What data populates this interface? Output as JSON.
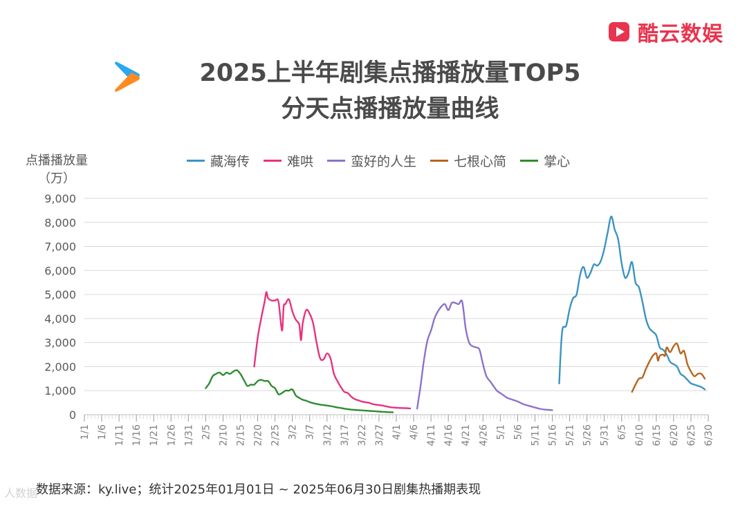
{
  "brand": {
    "name": "酷云数娱"
  },
  "title": {
    "line1": "2025上半年剧集点播播放量TOP5",
    "line2": "分天点播播放量曲线"
  },
  "source": "数据来源：ky.live；统计2025年01月01日 ~ 2025年06月30日剧集热播期表现",
  "watermark": "人数据",
  "colors": {
    "cangHaiZhuan": "#3a93c3",
    "nanHong": "#e8317e",
    "manHao": "#8c72c9",
    "qiGen": "#b5651d",
    "zhangXin": "#2e8b2e",
    "grid": "#d9d9d9",
    "brand": "#e8344e"
  },
  "chart_data": {
    "type": "line",
    "title": "2025上半年剧集点播播放量TOP5 分天点播播放量曲线",
    "ylabel": "点播播放量（万）",
    "xlabel": "",
    "ylim": [
      0,
      9000
    ],
    "yticks": [
      "0",
      "1,000",
      "2,000",
      "3,000",
      "4,000",
      "5,000",
      "6,000",
      "7,000",
      "8,000",
      "9,000"
    ],
    "xtick_labels": [
      "1/1",
      "1/6",
      "1/11",
      "1/16",
      "1/21",
      "1/26",
      "1/31",
      "2/5",
      "2/10",
      "2/15",
      "2/20",
      "2/25",
      "3/2",
      "3/7",
      "3/12",
      "3/17",
      "3/22",
      "3/27",
      "4/1",
      "4/6",
      "4/11",
      "4/16",
      "4/21",
      "4/26",
      "5/1",
      "5/6",
      "5/11",
      "5/16",
      "5/21",
      "5/26",
      "5/31",
      "6/5",
      "6/10",
      "6/15",
      "6/20",
      "6/25",
      "6/30"
    ],
    "x_unit": "day of year (1 = Jan 1)",
    "grid": true,
    "legend_position": "top",
    "series": [
      {
        "name": "藏海传",
        "color_key": "cangHaiZhuan",
        "points": [
          [
            138,
            1300
          ],
          [
            138.5,
            2800
          ],
          [
            139,
            3600
          ],
          [
            140,
            3700
          ],
          [
            141,
            4400
          ],
          [
            142,
            4850
          ],
          [
            143,
            5000
          ],
          [
            144,
            5800
          ],
          [
            145,
            6150
          ],
          [
            146,
            5700
          ],
          [
            147,
            5900
          ],
          [
            148,
            6250
          ],
          [
            149,
            6200
          ],
          [
            150,
            6400
          ],
          [
            151,
            6900
          ],
          [
            152,
            7600
          ],
          [
            153,
            8250
          ],
          [
            154,
            7700
          ],
          [
            155,
            7300
          ],
          [
            156,
            6300
          ],
          [
            157,
            5700
          ],
          [
            158,
            5900
          ],
          [
            159,
            6350
          ],
          [
            160,
            5500
          ],
          [
            161,
            5300
          ],
          [
            162,
            4700
          ],
          [
            163,
            4000
          ],
          [
            164,
            3600
          ],
          [
            165,
            3450
          ],
          [
            166,
            3300
          ],
          [
            167,
            2800
          ],
          [
            168,
            2700
          ],
          [
            169,
            2500
          ],
          [
            170,
            2200
          ],
          [
            171,
            2100
          ],
          [
            172,
            2000
          ],
          [
            173,
            1700
          ],
          [
            174,
            1600
          ],
          [
            175,
            1450
          ],
          [
            176,
            1300
          ],
          [
            177,
            1250
          ],
          [
            178,
            1200
          ],
          [
            179,
            1150
          ],
          [
            180,
            1050
          ]
        ]
      },
      {
        "name": "难哄",
        "color_key": "nanHong",
        "points": [
          [
            50,
            2000
          ],
          [
            51,
            3200
          ],
          [
            52,
            4000
          ],
          [
            53,
            4700
          ],
          [
            53.5,
            5100
          ],
          [
            54,
            4850
          ],
          [
            55,
            4750
          ],
          [
            56,
            4750
          ],
          [
            57,
            4700
          ],
          [
            58,
            3500
          ],
          [
            58.5,
            4500
          ],
          [
            59,
            4600
          ],
          [
            60,
            4800
          ],
          [
            61,
            4300
          ],
          [
            62,
            3950
          ],
          [
            63,
            3750
          ],
          [
            63.5,
            3100
          ],
          [
            64,
            3800
          ],
          [
            65,
            4350
          ],
          [
            66,
            4200
          ],
          [
            67,
            3800
          ],
          [
            68,
            3000
          ],
          [
            69,
            2350
          ],
          [
            70,
            2300
          ],
          [
            71,
            2550
          ],
          [
            72,
            2350
          ],
          [
            73,
            1700
          ],
          [
            74,
            1400
          ],
          [
            75,
            1150
          ],
          [
            76,
            950
          ],
          [
            77,
            900
          ],
          [
            78,
            750
          ],
          [
            79,
            650
          ],
          [
            80,
            600
          ],
          [
            81,
            550
          ],
          [
            82,
            520
          ],
          [
            83,
            500
          ],
          [
            84,
            450
          ],
          [
            85,
            420
          ],
          [
            86,
            400
          ],
          [
            87,
            380
          ],
          [
            88,
            350
          ],
          [
            89,
            320
          ],
          [
            90,
            300
          ],
          [
            91,
            290
          ],
          [
            92,
            280
          ],
          [
            93,
            275
          ],
          [
            94,
            270
          ],
          [
            95,
            260
          ]
        ]
      },
      {
        "name": "蛮好的人生",
        "color_key": "manHao",
        "points": [
          [
            97,
            250
          ],
          [
            98,
            1200
          ],
          [
            99,
            2300
          ],
          [
            100,
            3100
          ],
          [
            101,
            3500
          ],
          [
            102,
            4000
          ],
          [
            103,
            4300
          ],
          [
            104,
            4500
          ],
          [
            105,
            4600
          ],
          [
            106,
            4350
          ],
          [
            107,
            4650
          ],
          [
            108,
            4650
          ],
          [
            109,
            4600
          ],
          [
            110,
            4700
          ],
          [
            111,
            3600
          ],
          [
            112,
            3000
          ],
          [
            113,
            2850
          ],
          [
            114,
            2800
          ],
          [
            115,
            2700
          ],
          [
            116,
            2100
          ],
          [
            117,
            1600
          ],
          [
            118,
            1400
          ],
          [
            119,
            1200
          ],
          [
            120,
            1000
          ],
          [
            121,
            900
          ],
          [
            122,
            800
          ],
          [
            123,
            700
          ],
          [
            124,
            650
          ],
          [
            125,
            600
          ],
          [
            126,
            550
          ],
          [
            127,
            480
          ],
          [
            128,
            420
          ],
          [
            129,
            380
          ],
          [
            130,
            340
          ],
          [
            131,
            300
          ],
          [
            132,
            260
          ],
          [
            133,
            230
          ],
          [
            134,
            210
          ],
          [
            135,
            200
          ],
          [
            136,
            190
          ]
        ]
      },
      {
        "name": "七根心简",
        "color_key": "qiGen",
        "points": [
          [
            159,
            950
          ],
          [
            160,
            1250
          ],
          [
            161,
            1500
          ],
          [
            162,
            1550
          ],
          [
            163,
            1900
          ],
          [
            164,
            2200
          ],
          [
            165,
            2450
          ],
          [
            166,
            2550
          ],
          [
            166.5,
            2250
          ],
          [
            167,
            2450
          ],
          [
            168,
            2500
          ],
          [
            168.5,
            2450
          ],
          [
            169,
            2800
          ],
          [
            170,
            2600
          ],
          [
            171,
            2850
          ],
          [
            172,
            2950
          ],
          [
            173,
            2550
          ],
          [
            174,
            2650
          ],
          [
            175,
            2100
          ],
          [
            176,
            1800
          ],
          [
            177,
            1600
          ],
          [
            178,
            1700
          ],
          [
            179,
            1700
          ],
          [
            180,
            1500
          ]
        ]
      },
      {
        "name": "掌心",
        "color_key": "zhangXin",
        "points": [
          [
            36,
            1100
          ],
          [
            37,
            1300
          ],
          [
            38,
            1600
          ],
          [
            39,
            1700
          ],
          [
            40,
            1750
          ],
          [
            41,
            1650
          ],
          [
            42,
            1750
          ],
          [
            43,
            1700
          ],
          [
            44,
            1800
          ],
          [
            45,
            1850
          ],
          [
            46,
            1700
          ],
          [
            47,
            1450
          ],
          [
            48,
            1200
          ],
          [
            49,
            1250
          ],
          [
            50,
            1250
          ],
          [
            51,
            1400
          ],
          [
            52,
            1450
          ],
          [
            53,
            1400
          ],
          [
            54,
            1400
          ],
          [
            55,
            1200
          ],
          [
            56,
            1100
          ],
          [
            57,
            850
          ],
          [
            58,
            900
          ],
          [
            59,
            1000
          ],
          [
            60,
            1000
          ],
          [
            61,
            1050
          ],
          [
            62,
            800
          ],
          [
            63,
            700
          ],
          [
            64,
            620
          ],
          [
            65,
            580
          ],
          [
            66,
            520
          ],
          [
            67,
            480
          ],
          [
            68,
            450
          ],
          [
            69,
            420
          ],
          [
            70,
            400
          ],
          [
            71,
            380
          ],
          [
            72,
            360
          ],
          [
            73,
            330
          ],
          [
            74,
            300
          ],
          [
            75,
            280
          ],
          [
            76,
            250
          ],
          [
            77,
            230
          ],
          [
            78,
            210
          ],
          [
            79,
            200
          ],
          [
            80,
            190
          ],
          [
            81,
            180
          ],
          [
            82,
            170
          ],
          [
            83,
            160
          ],
          [
            84,
            150
          ],
          [
            85,
            140
          ],
          [
            86,
            130
          ],
          [
            87,
            120
          ],
          [
            88,
            110
          ],
          [
            89,
            105
          ],
          [
            90,
            100
          ]
        ]
      }
    ]
  }
}
